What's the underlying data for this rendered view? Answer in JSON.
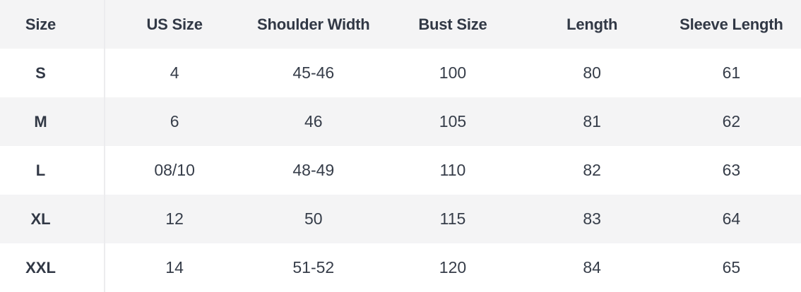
{
  "size_chart": {
    "columns": [
      "Size",
      "US Size",
      "Shoulder Width",
      "Bust Size",
      "Length",
      "Sleeve Length"
    ],
    "rows": [
      [
        "S",
        "4",
        "45-46",
        "100",
        "80",
        "61"
      ],
      [
        "M",
        "6",
        "46",
        "105",
        "81",
        "62"
      ],
      [
        "L",
        "08/10",
        "48-49",
        "110",
        "82",
        "63"
      ],
      [
        "XL",
        "12",
        "50",
        "115",
        "83",
        "64"
      ],
      [
        "XXL",
        "14",
        "51-52",
        "120",
        "84",
        "65"
      ]
    ]
  },
  "chart_data": {
    "type": "table",
    "columns": [
      "Size",
      "US Size",
      "Shoulder Width",
      "Bust Size",
      "Length",
      "Sleeve Length"
    ],
    "rows": [
      [
        "S",
        "4",
        "45-46",
        "100",
        "80",
        "61"
      ],
      [
        "M",
        "6",
        "46",
        "105",
        "81",
        "62"
      ],
      [
        "L",
        "08/10",
        "48-49",
        "110",
        "82",
        "63"
      ],
      [
        "XL",
        "12",
        "50",
        "115",
        "83",
        "64"
      ],
      [
        "XXL",
        "14",
        "51-52",
        "120",
        "84",
        "65"
      ]
    ]
  },
  "colors": {
    "stripe_background": "#f4f4f5",
    "row_background": "#ffffff",
    "divider": "#ececee",
    "header_text": "#313845",
    "cell_text": "#363d49"
  }
}
